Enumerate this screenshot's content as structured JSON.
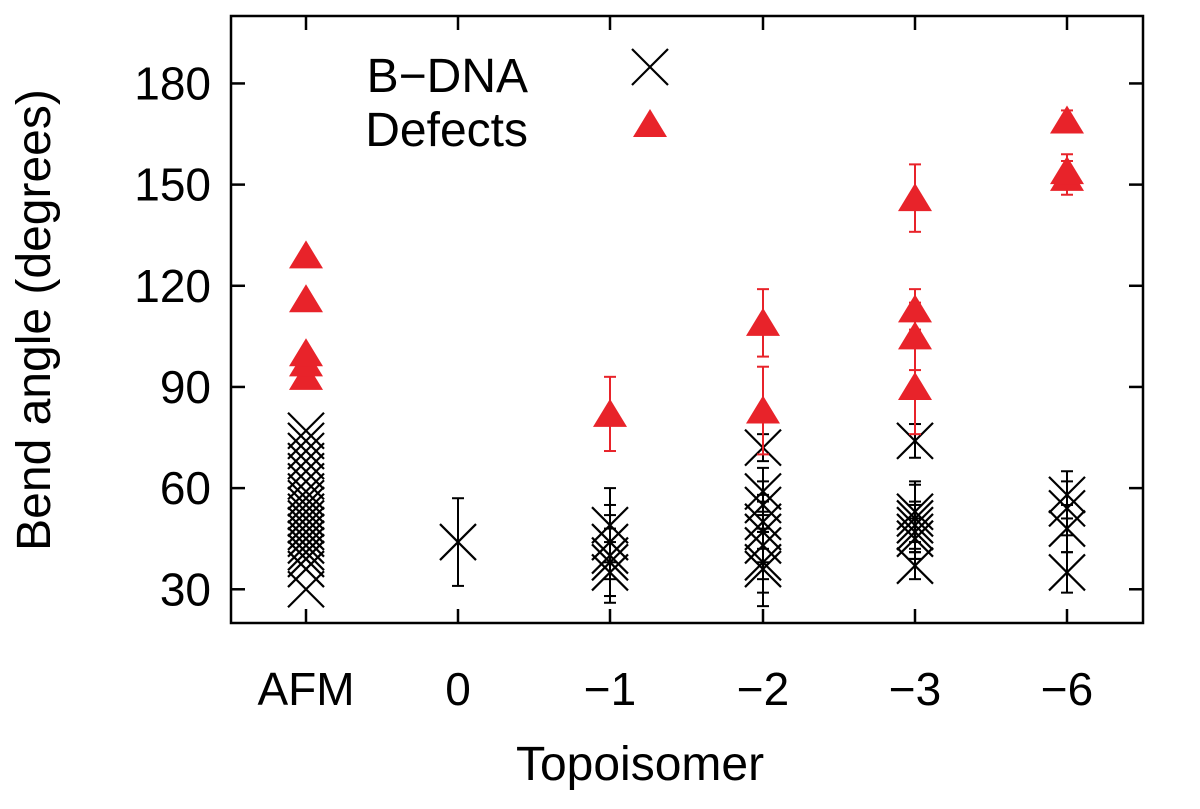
{
  "chart_data": {
    "type": "scatter",
    "xlabel": "Topoisomer",
    "ylabel": "Bend angle (degrees)",
    "categories": [
      "AFM",
      "0",
      "−1",
      "−2",
      "−3",
      "−6"
    ],
    "ylim": [
      20,
      200
    ],
    "yticks": [
      30,
      60,
      90,
      120,
      150,
      180
    ],
    "grid": false,
    "legend_position": "top-left",
    "series": [
      {
        "name": "B−DNA",
        "marker": "x",
        "color": "#000000",
        "points": [
          {
            "x": "AFM",
            "y": 30
          },
          {
            "x": "AFM",
            "y": 36
          },
          {
            "x": "AFM",
            "y": 39
          },
          {
            "x": "AFM",
            "y": 41
          },
          {
            "x": "AFM",
            "y": 43
          },
          {
            "x": "AFM",
            "y": 45
          },
          {
            "x": "AFM",
            "y": 47
          },
          {
            "x": "AFM",
            "y": 49
          },
          {
            "x": "AFM",
            "y": 51
          },
          {
            "x": "AFM",
            "y": 53
          },
          {
            "x": "AFM",
            "y": 55
          },
          {
            "x": "AFM",
            "y": 57
          },
          {
            "x": "AFM",
            "y": 59
          },
          {
            "x": "AFM",
            "y": 62
          },
          {
            "x": "AFM",
            "y": 65
          },
          {
            "x": "AFM",
            "y": 68
          },
          {
            "x": "AFM",
            "y": 71
          },
          {
            "x": "AFM",
            "y": 74
          },
          {
            "x": "AFM",
            "y": 77
          },
          {
            "x": "0",
            "y": 44,
            "err": 13
          },
          {
            "x": "−1",
            "y": 35,
            "err": 9
          },
          {
            "x": "−1",
            "y": 38,
            "err": 10
          },
          {
            "x": "−1",
            "y": 40,
            "err": 12
          },
          {
            "x": "−1",
            "y": 44,
            "err": 11
          },
          {
            "x": "−1",
            "y": 49,
            "err": 11
          },
          {
            "x": "−2",
            "y": 36,
            "err": 11
          },
          {
            "x": "−2",
            "y": 38,
            "err": 9
          },
          {
            "x": "−2",
            "y": 43,
            "err": 10
          },
          {
            "x": "−2",
            "y": 47,
            "err": 9
          },
          {
            "x": "−2",
            "y": 50,
            "err": 8
          },
          {
            "x": "−2",
            "y": 55,
            "err": 7
          },
          {
            "x": "−2",
            "y": 59,
            "err": 7
          },
          {
            "x": "−2",
            "y": 72,
            "err": 4
          },
          {
            "x": "−3",
            "y": 37,
            "err": 4
          },
          {
            "x": "−3",
            "y": 45,
            "err": 6
          },
          {
            "x": "−3",
            "y": 47,
            "err": 8
          },
          {
            "x": "−3",
            "y": 49,
            "err": 7
          },
          {
            "x": "−3",
            "y": 51,
            "err": 10
          },
          {
            "x": "−3",
            "y": 53,
            "err": 9
          },
          {
            "x": "−3",
            "y": 74,
            "err": 5
          },
          {
            "x": "−6",
            "y": 35,
            "err": 6
          },
          {
            "x": "−6",
            "y": 48,
            "err": 7
          },
          {
            "x": "−6",
            "y": 54,
            "err": 8
          },
          {
            "x": "−6",
            "y": 58,
            "err": 7
          }
        ]
      },
      {
        "name": "Defects",
        "marker": "triangle",
        "color": "#e8232a",
        "points": [
          {
            "x": "AFM",
            "y": 93
          },
          {
            "x": "AFM",
            "y": 97
          },
          {
            "x": "AFM",
            "y": 100
          },
          {
            "x": "AFM",
            "y": 116
          },
          {
            "x": "AFM",
            "y": 129
          },
          {
            "x": "−1",
            "y": 82,
            "err": 11
          },
          {
            "x": "−2",
            "y": 83,
            "err": 13
          },
          {
            "x": "−2",
            "y": 109,
            "err": 10
          },
          {
            "x": "−3",
            "y": 90,
            "err": 14
          },
          {
            "x": "−3",
            "y": 105,
            "err": 10
          },
          {
            "x": "−3",
            "y": 113,
            "err": 6
          },
          {
            "x": "−3",
            "y": 146,
            "err": 10
          },
          {
            "x": "−6",
            "y": 152,
            "err": 5
          },
          {
            "x": "−6",
            "y": 154,
            "err": 5
          },
          {
            "x": "−6",
            "y": 169,
            "err": 3
          }
        ]
      }
    ]
  }
}
